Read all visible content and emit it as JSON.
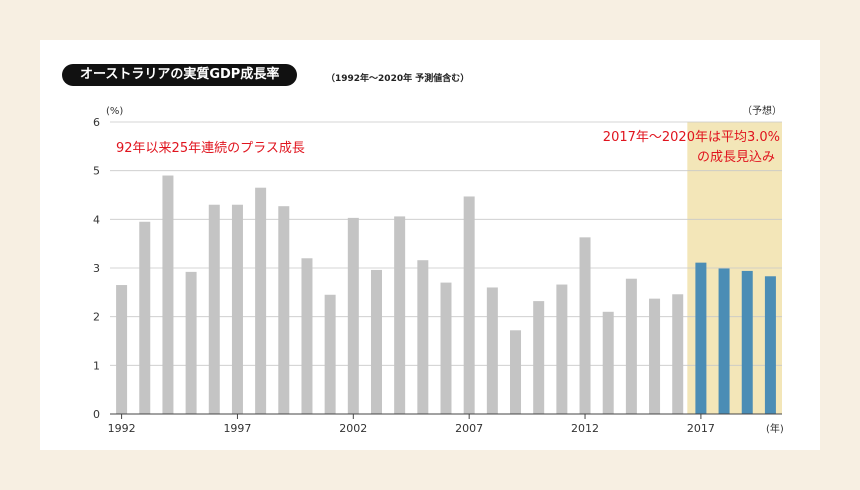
{
  "title": "オーストラリアの実質GDP成長率",
  "subtitle": "（1992年〜2020年 予測値含む）",
  "chart_data": {
    "type": "bar",
    "x": [
      1992,
      1993,
      1994,
      1995,
      1996,
      1997,
      1998,
      1999,
      2000,
      2001,
      2002,
      2003,
      2004,
      2005,
      2006,
      2007,
      2008,
      2009,
      2010,
      2011,
      2012,
      2013,
      2014,
      2015,
      2016,
      2017,
      2018,
      2019,
      2020
    ],
    "values": [
      2.65,
      3.95,
      4.9,
      2.92,
      4.3,
      4.3,
      4.65,
      4.27,
      3.2,
      2.45,
      4.03,
      2.96,
      4.06,
      3.16,
      2.7,
      4.47,
      2.6,
      1.72,
      2.32,
      2.66,
      3.63,
      2.1,
      2.78,
      2.37,
      2.46,
      3.11,
      2.99,
      2.94,
      2.83
    ],
    "forecast_from": 2017,
    "ylim": [
      0,
      6
    ],
    "yticks": [
      0,
      1,
      2,
      3,
      4,
      5,
      6
    ],
    "xtick_labels": [
      "1992",
      "1997",
      "2002",
      "2007",
      "2012",
      "2017"
    ],
    "y_unit": "(%)",
    "x_unit": "(年)",
    "forecast_label": "（予想）",
    "annotation_left": "92年以来25年連続のプラス成長",
    "annotation_right": [
      "2017年〜2020年は平均3.0%",
      "の成長見込み"
    ],
    "grid": true,
    "colors": {
      "actual": "#c4c4c4",
      "forecast": "#4b8db5",
      "forecast_band": "#f3e6b8",
      "annotation": "#e0141e"
    }
  }
}
